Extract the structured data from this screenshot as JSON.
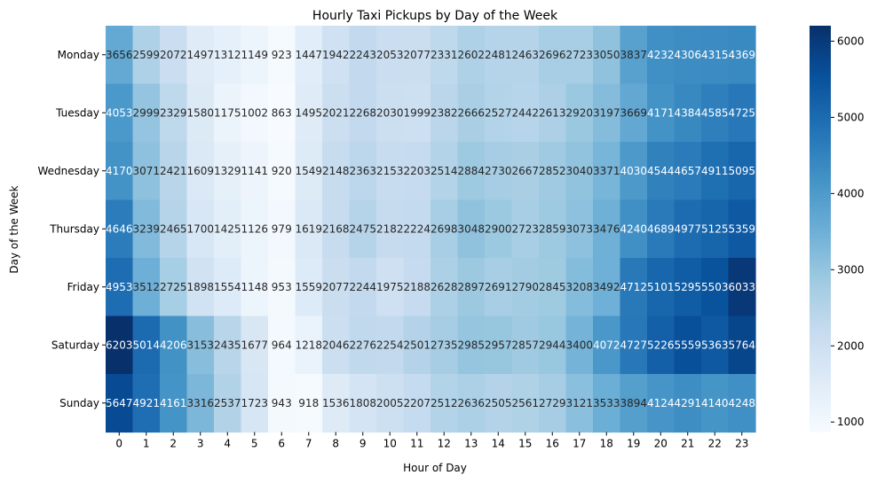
{
  "chart_data": {
    "type": "heatmap",
    "title": "Hourly Taxi Pickups by Day of the Week",
    "xlabel": "Hour of Day",
    "ylabel": "Day of the Week",
    "x_categories": [
      "0",
      "1",
      "2",
      "3",
      "4",
      "5",
      "6",
      "7",
      "8",
      "9",
      "10",
      "11",
      "12",
      "13",
      "14",
      "15",
      "16",
      "17",
      "18",
      "19",
      "20",
      "21",
      "22",
      "23"
    ],
    "y_categories": [
      "Monday",
      "Tuesday",
      "Wednesday",
      "Thursday",
      "Friday",
      "Saturday",
      "Sunday"
    ],
    "values": [
      [
        3656,
        2599,
        2072,
        1497,
        1312,
        1149,
        923,
        1447,
        1942,
        2243,
        2053,
        2077,
        2331,
        2602,
        2481,
        2463,
        2696,
        2723,
        3050,
        3837,
        4232,
        4306,
        4315,
        4369
      ],
      [
        4053,
        2999,
        2329,
        1580,
        1175,
        1002,
        863,
        1495,
        2021,
        2268,
        2030,
        1999,
        2382,
        2666,
        2527,
        2442,
        2613,
        2920,
        3197,
        3669,
        4171,
        4384,
        4585,
        4725
      ],
      [
        4170,
        3071,
        2421,
        1609,
        1329,
        1141,
        920,
        1549,
        2148,
        2363,
        2153,
        2203,
        2514,
        2884,
        2730,
        2667,
        2852,
        3040,
        3371,
        4030,
        4544,
        4657,
        4911,
        5095
      ],
      [
        4646,
        3239,
        2465,
        1700,
        1425,
        1126,
        979,
        1619,
        2168,
        2475,
        2182,
        2224,
        2698,
        3048,
        2900,
        2723,
        2859,
        3073,
        3476,
        4240,
        4689,
        4977,
        5125,
        5359
      ],
      [
        4953,
        3512,
        2725,
        1898,
        1554,
        1148,
        953,
        1559,
        2077,
        2244,
        1975,
        2188,
        2628,
        2897,
        2691,
        2790,
        2845,
        3208,
        3492,
        4712,
        5101,
        5295,
        5503,
        6033
      ],
      [
        6203,
        5014,
        4206,
        3153,
        2435,
        1677,
        964,
        1218,
        2046,
        2276,
        2254,
        2501,
        2735,
        2985,
        2957,
        2857,
        2944,
        3400,
        4072,
        4727,
        5226,
        5559,
        5363,
        5764
      ],
      [
        5647,
        4921,
        4161,
        3316,
        2537,
        1723,
        943,
        918,
        1536,
        1808,
        2005,
        2207,
        2512,
        2636,
        2505,
        2561,
        2729,
        3121,
        3533,
        3894,
        4124,
        4291,
        4140,
        4248
      ]
    ],
    "color_map": "Blues",
    "color_range": [
      863,
      6203
    ],
    "colorbar_ticks": [
      "1000",
      "2000",
      "3000",
      "4000",
      "5000",
      "6000"
    ],
    "grid": false,
    "legend": "colorbar-right"
  }
}
